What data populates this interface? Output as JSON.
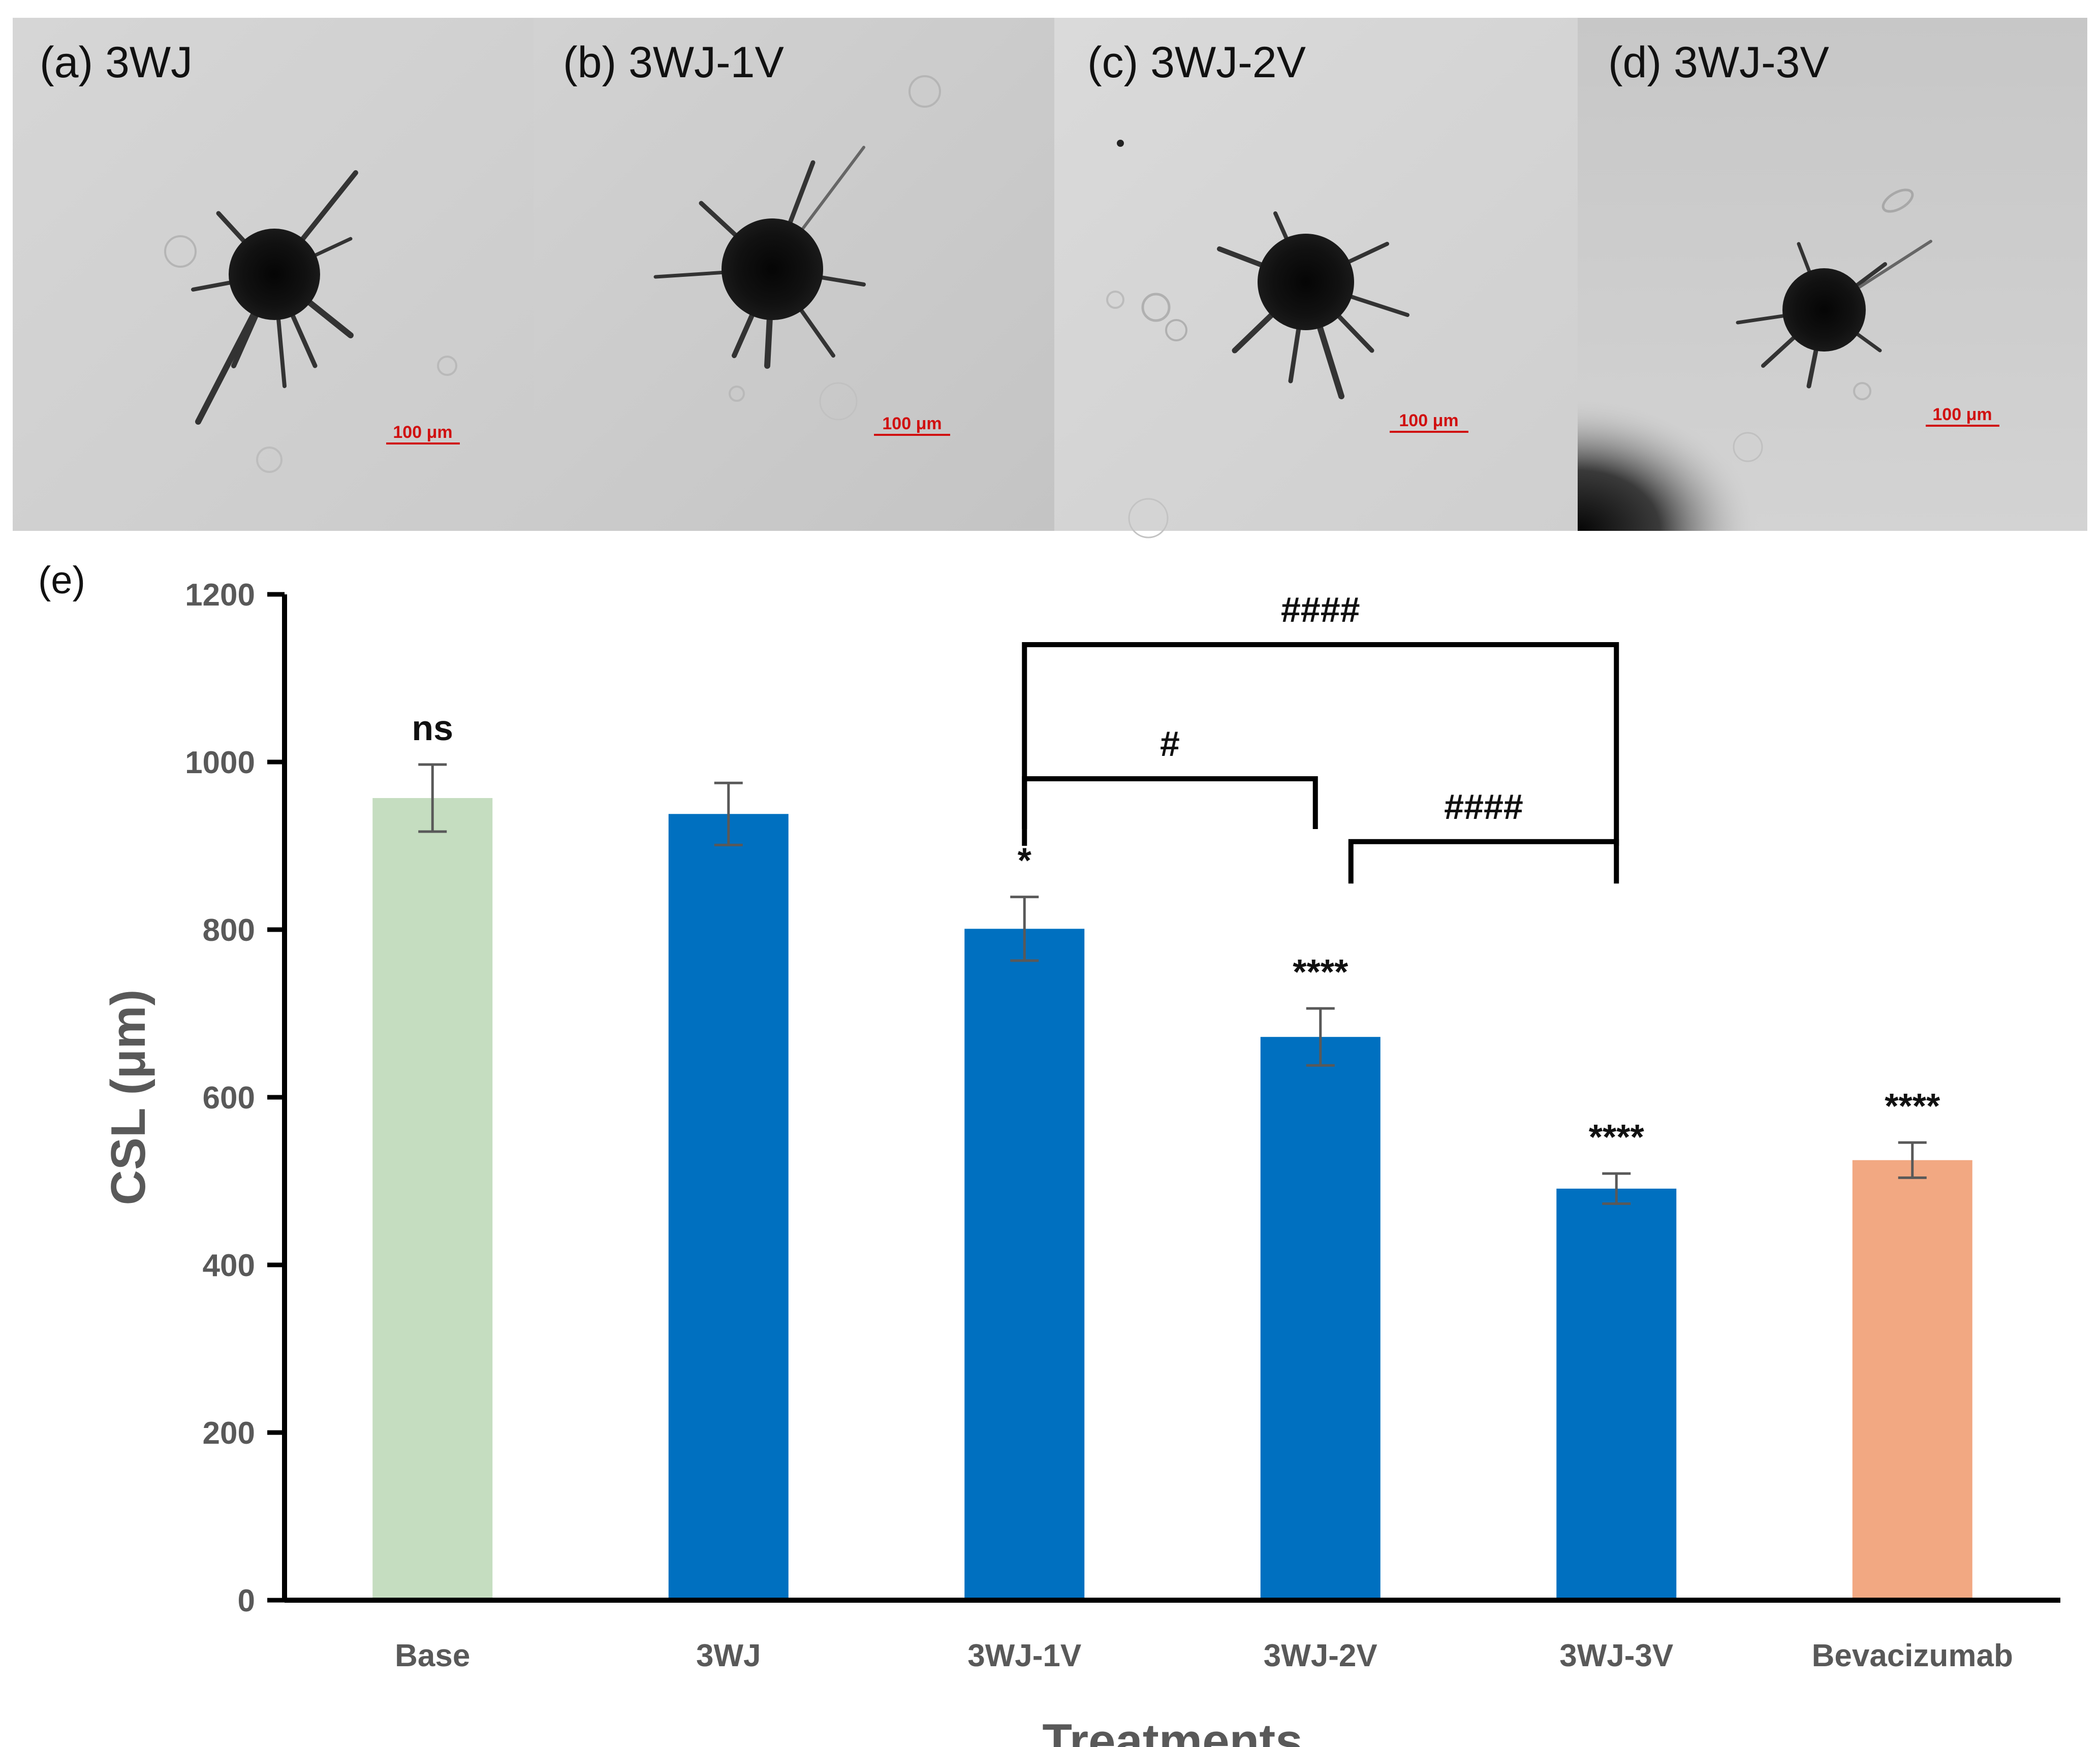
{
  "panels": [
    {
      "label": "(a) 3WJ",
      "scale_bar": "100 μm"
    },
    {
      "label": "(b) 3WJ-1V",
      "scale_bar": "100 μm"
    },
    {
      "label": "(c) 3WJ-2V",
      "scale_bar": "100 μm"
    },
    {
      "label": "(d) 3WJ-3V",
      "scale_bar": "100 μm"
    }
  ],
  "chart_panel_label": "(e)",
  "colors": {
    "base": "#c5ddc0",
    "treatment": "#0070c0",
    "reference": "#f2a882",
    "axis": "#000000",
    "tick_text": "#595959",
    "scale_bar": "#d01010"
  },
  "chart_data": {
    "type": "bar",
    "title": "",
    "xlabel": "Treatments",
    "ylabel": "CSL (μm)",
    "ylim": [
      0,
      1200
    ],
    "yticks": [
      0,
      200,
      400,
      600,
      800,
      1000,
      1200
    ],
    "categories": [
      "Base",
      "3WJ",
      "3WJ-1V",
      "3WJ-2V",
      "3WJ-3V",
      "Bevacizumab"
    ],
    "values": [
      957,
      938,
      801,
      672,
      491,
      525
    ],
    "errors": [
      40,
      37,
      38,
      34,
      18,
      21
    ],
    "bar_colors": [
      "#c5ddc0",
      "#0070c0",
      "#0070c0",
      "#0070c0",
      "#0070c0",
      "#f2a882"
    ],
    "annotations": [
      "ns",
      "",
      "*",
      "****",
      "****",
      "****"
    ],
    "brackets": [
      {
        "from": "3WJ-1V",
        "to": "3WJ-3V",
        "label": "####"
      },
      {
        "from": "3WJ-1V",
        "to": "3WJ-2V",
        "label": "#"
      },
      {
        "from": "3WJ-2V",
        "to": "3WJ-3V",
        "label": "####"
      }
    ]
  }
}
